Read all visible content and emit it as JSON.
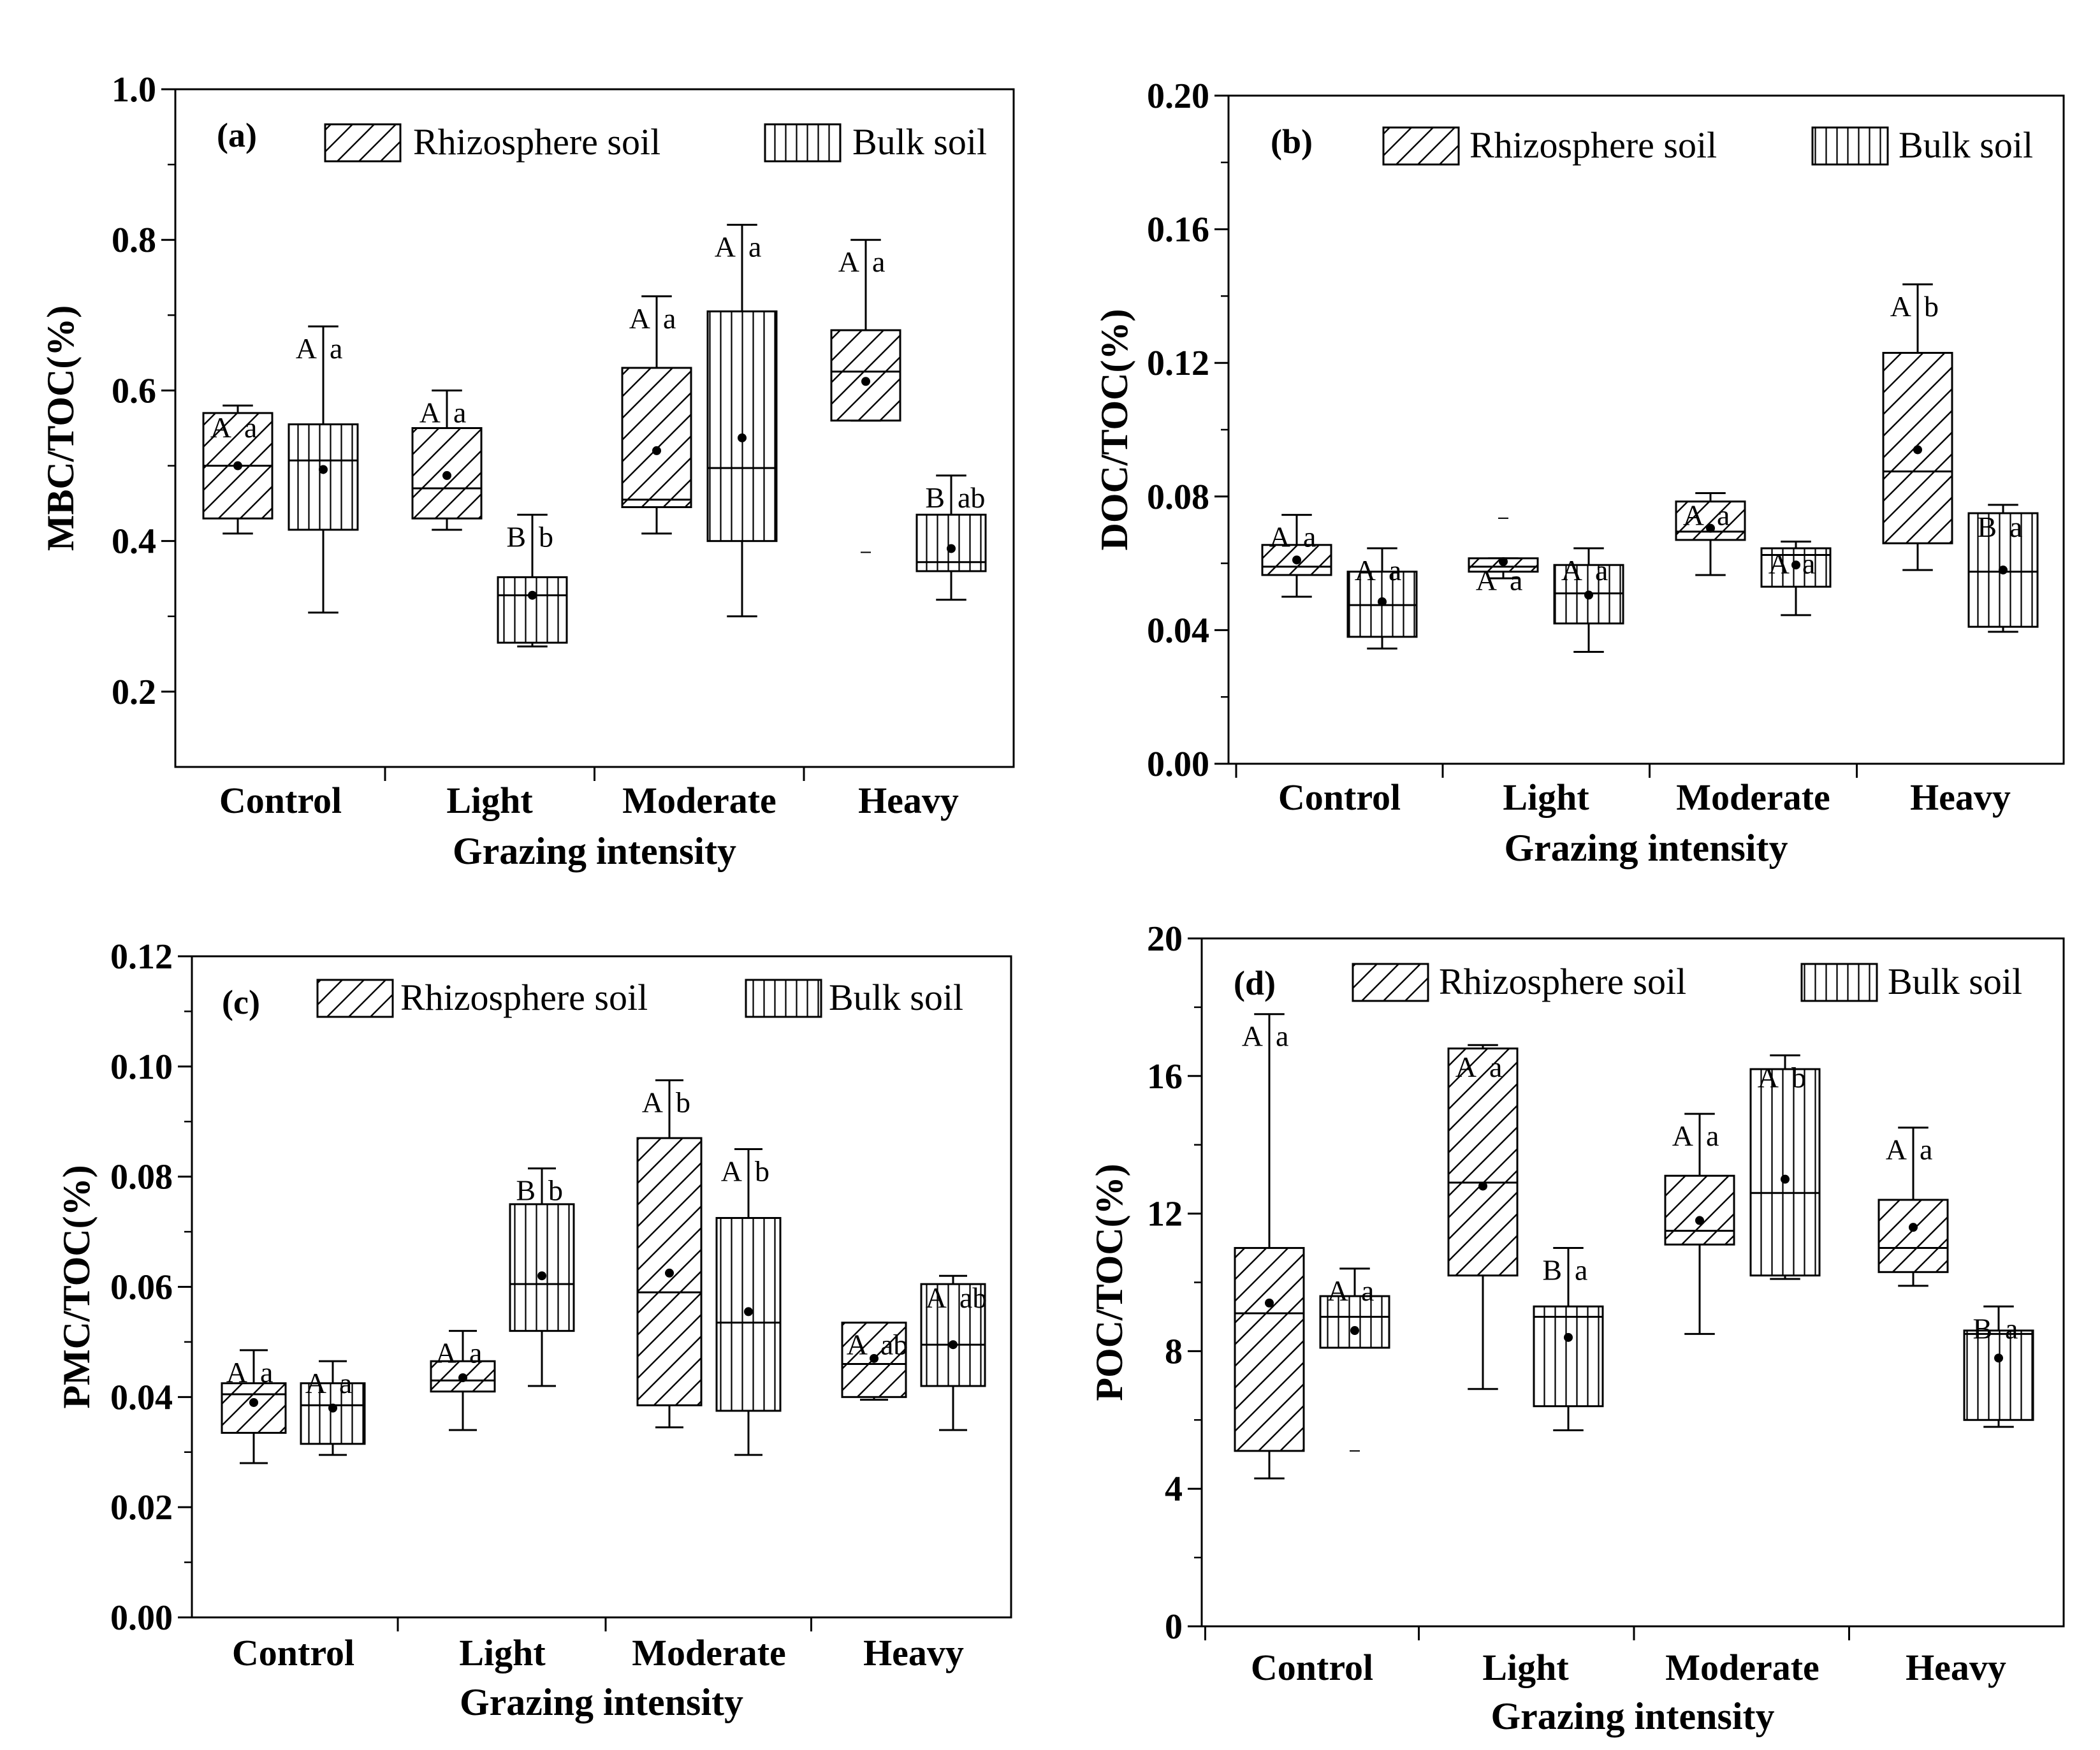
{
  "chart_data": [
    {
      "type": "box",
      "panel": "(a)",
      "ylabel": "MBC/TOC(%)",
      "xlabel": "Grazing intensity",
      "ylim": [
        0.1,
        1.0
      ],
      "yticks": [
        "0.2",
        "0.4",
        "0.6",
        "0.8",
        "1.0"
      ],
      "ytick_values": [
        0.2,
        0.4,
        0.6,
        0.8,
        1.0
      ],
      "categories": [
        "Control",
        "Light",
        "Moderate",
        "Heavy"
      ],
      "legend": [
        "Rhizosphere soil",
        "Bulk soil"
      ],
      "series": [
        {
          "name": "Rhizosphere soil",
          "pattern": "diag",
          "boxes": [
            {
              "whislo": 0.41,
              "q1": 0.43,
              "med": 0.5,
              "q3": 0.57,
              "whishi": 0.58,
              "mean": 0.5,
              "sig": [
                "A",
                "a"
              ]
            },
            {
              "whislo": 0.415,
              "q1": 0.43,
              "med": 0.47,
              "q3": 0.55,
              "whishi": 0.6,
              "mean": 0.487,
              "sig": [
                "A",
                "a"
              ]
            },
            {
              "whislo": 0.41,
              "q1": 0.445,
              "med": 0.455,
              "q3": 0.63,
              "whishi": 0.725,
              "mean": 0.52,
              "sig": [
                "A",
                "a"
              ]
            },
            {
              "whislo": 0.56,
              "q1": 0.56,
              "med": 0.625,
              "q3": 0.68,
              "whishi": 0.8,
              "mean": 0.612,
              "sig": [
                "A",
                "a"
              ],
              "outliers": [
                0.385
              ]
            }
          ]
        },
        {
          "name": "Bulk soil",
          "pattern": "vert",
          "boxes": [
            {
              "whislo": 0.305,
              "q1": 0.415,
              "med": 0.507,
              "q3": 0.555,
              "whishi": 0.685,
              "mean": 0.495,
              "sig": [
                "A",
                "a"
              ]
            },
            {
              "whislo": 0.26,
              "q1": 0.265,
              "med": 0.328,
              "q3": 0.352,
              "whishi": 0.435,
              "mean": 0.328,
              "sig": [
                "B",
                "b"
              ]
            },
            {
              "whislo": 0.3,
              "q1": 0.4,
              "med": 0.497,
              "q3": 0.705,
              "whishi": 0.82,
              "mean": 0.537,
              "sig": [
                "A",
                "a"
              ]
            },
            {
              "whislo": 0.322,
              "q1": 0.36,
              "med": 0.372,
              "q3": 0.435,
              "whishi": 0.487,
              "mean": 0.39,
              "sig": [
                "B",
                "ab"
              ]
            }
          ]
        }
      ]
    },
    {
      "type": "box",
      "panel": "(b)",
      "ylabel": "DOC/TOC(%)",
      "xlabel": "Grazing intensity",
      "ylim": [
        0.0,
        0.2
      ],
      "yticks": [
        "0.00",
        "0.04",
        "0.08",
        "0.12",
        "0.16",
        "0.20"
      ],
      "ytick_values": [
        0.0,
        0.04,
        0.08,
        0.12,
        0.16,
        0.2
      ],
      "categories": [
        "Control",
        "Light",
        "Moderate",
        "Heavy"
      ],
      "legend": [
        "Rhizosphere soil",
        "Bulk soil"
      ],
      "series": [
        {
          "name": "Rhizosphere soil",
          "pattern": "diag",
          "boxes": [
            {
              "whislo": 0.05,
              "q1": 0.0565,
              "med": 0.059,
              "q3": 0.0655,
              "whishi": 0.0745,
              "mean": 0.061,
              "sig": [
                "A",
                "a"
              ]
            },
            {
              "whislo": 0.0555,
              "q1": 0.0575,
              "med": 0.059,
              "q3": 0.0615,
              "whishi": 0.0615,
              "mean": 0.0605,
              "sig": [
                "A",
                "a"
              ],
              "outliers": [
                0.0735
              ]
            },
            {
              "whislo": 0.0565,
              "q1": 0.067,
              "med": 0.0695,
              "q3": 0.0785,
              "whishi": 0.081,
              "mean": 0.0705,
              "sig": [
                "A",
                "a"
              ]
            },
            {
              "whislo": 0.058,
              "q1": 0.066,
              "med": 0.0875,
              "q3": 0.123,
              "whishi": 0.1435,
              "mean": 0.094,
              "sig": [
                "A",
                "b"
              ]
            }
          ]
        },
        {
          "name": "Bulk soil",
          "pattern": "vert",
          "boxes": [
            {
              "whislo": 0.0345,
              "q1": 0.038,
              "med": 0.0475,
              "q3": 0.0575,
              "whishi": 0.0645,
              "mean": 0.0485,
              "sig": [
                "A",
                "a"
              ]
            },
            {
              "whislo": 0.0335,
              "q1": 0.042,
              "med": 0.051,
              "q3": 0.0595,
              "whishi": 0.0645,
              "mean": 0.0505,
              "sig": [
                "A",
                "a"
              ]
            },
            {
              "whislo": 0.0445,
              "q1": 0.053,
              "med": 0.0625,
              "q3": 0.0645,
              "whishi": 0.0665,
              "mean": 0.0595,
              "sig": [
                "A",
                "a"
              ]
            },
            {
              "whislo": 0.0395,
              "q1": 0.041,
              "med": 0.0575,
              "q3": 0.075,
              "whishi": 0.0775,
              "mean": 0.058,
              "sig": [
                "B",
                "a"
              ]
            }
          ]
        }
      ]
    },
    {
      "type": "box",
      "panel": "(c)",
      "ylabel": "PMC/TOC(%)",
      "xlabel": "Grazing intensity",
      "ylim": [
        0.0,
        0.12
      ],
      "yticks": [
        "0.00",
        "0.02",
        "0.04",
        "0.06",
        "0.08",
        "0.10",
        "0.12"
      ],
      "ytick_values": [
        0.0,
        0.02,
        0.04,
        0.06,
        0.08,
        0.1,
        0.12
      ],
      "categories": [
        "Control",
        "Light",
        "Moderate",
        "Heavy"
      ],
      "legend": [
        "Rhizosphere soil",
        "Bulk soil"
      ],
      "series": [
        {
          "name": "Rhizosphere soil",
          "pattern": "diag",
          "boxes": [
            {
              "whislo": 0.028,
              "q1": 0.0335,
              "med": 0.0405,
              "q3": 0.0425,
              "whishi": 0.0485,
              "mean": 0.039,
              "sig": [
                "A",
                "a"
              ]
            },
            {
              "whislo": 0.034,
              "q1": 0.041,
              "med": 0.043,
              "q3": 0.0465,
              "whishi": 0.052,
              "mean": 0.0435,
              "sig": [
                "A",
                "a"
              ]
            },
            {
              "whislo": 0.0345,
              "q1": 0.0385,
              "med": 0.059,
              "q3": 0.087,
              "whishi": 0.0975,
              "mean": 0.0625,
              "sig": [
                "A",
                "b"
              ]
            },
            {
              "whislo": 0.0395,
              "q1": 0.04,
              "med": 0.046,
              "q3": 0.0535,
              "whishi": 0.0535,
              "mean": 0.047,
              "sig": [
                "A",
                "ab"
              ]
            }
          ]
        },
        {
          "name": "Bulk soil",
          "pattern": "vert",
          "boxes": [
            {
              "whislo": 0.0295,
              "q1": 0.0315,
              "med": 0.0385,
              "q3": 0.0425,
              "whishi": 0.0465,
              "mean": 0.038,
              "sig": [
                "A",
                "a"
              ]
            },
            {
              "whislo": 0.042,
              "q1": 0.052,
              "med": 0.0605,
              "q3": 0.075,
              "whishi": 0.0815,
              "mean": 0.062,
              "sig": [
                "B",
                "b"
              ]
            },
            {
              "whislo": 0.0295,
              "q1": 0.0375,
              "med": 0.0535,
              "q3": 0.0725,
              "whishi": 0.085,
              "mean": 0.0555,
              "sig": [
                "A",
                "b"
              ]
            },
            {
              "whislo": 0.034,
              "q1": 0.042,
              "med": 0.0495,
              "q3": 0.0605,
              "whishi": 0.062,
              "mean": 0.0495,
              "sig": [
                "A",
                "ab"
              ]
            }
          ]
        }
      ]
    },
    {
      "type": "box",
      "panel": "(d)",
      "ylabel": "POC/TOC(%)",
      "xlabel": "Grazing intensity",
      "ylim": [
        0,
        20
      ],
      "yticks": [
        "0",
        "4",
        "8",
        "12",
        "16",
        "20"
      ],
      "ytick_values": [
        0,
        4,
        8,
        12,
        16,
        20
      ],
      "categories": [
        "Control",
        "Light",
        "Moderate",
        "Heavy"
      ],
      "legend": [
        "Rhizosphere soil",
        "Bulk soil"
      ],
      "series": [
        {
          "name": "Rhizosphere soil",
          "pattern": "diag",
          "boxes": [
            {
              "whislo": 4.3,
              "q1": 5.1,
              "med": 9.1,
              "q3": 11.0,
              "whishi": 17.8,
              "mean": 9.4,
              "sig": [
                "A",
                "a"
              ]
            },
            {
              "whislo": 6.9,
              "q1": 10.2,
              "med": 12.9,
              "q3": 16.8,
              "whishi": 16.9,
              "mean": 12.8,
              "sig": [
                "A",
                "a"
              ]
            },
            {
              "whislo": 8.5,
              "q1": 11.1,
              "med": 11.5,
              "q3": 13.1,
              "whishi": 14.9,
              "mean": 11.8,
              "sig": [
                "A",
                "a"
              ]
            },
            {
              "whislo": 9.9,
              "q1": 10.3,
              "med": 11.0,
              "q3": 12.4,
              "whishi": 14.5,
              "mean": 11.6,
              "sig": [
                "A",
                "a"
              ]
            }
          ]
        },
        {
          "name": "Bulk soil",
          "pattern": "vert",
          "boxes": [
            {
              "whislo": 8.1,
              "q1": 8.1,
              "med": 9.0,
              "q3": 9.6,
              "whishi": 10.4,
              "mean": 8.6,
              "sig": [
                "A",
                "a"
              ],
              "outliers": [
                5.1
              ]
            },
            {
              "whislo": 5.7,
              "q1": 6.4,
              "med": 9.0,
              "q3": 9.3,
              "whishi": 11.0,
              "mean": 8.4,
              "sig": [
                "B",
                "a"
              ]
            },
            {
              "whislo": 10.1,
              "q1": 10.2,
              "med": 12.6,
              "q3": 16.2,
              "whishi": 16.6,
              "mean": 13.0,
              "sig": [
                "A",
                "b"
              ]
            },
            {
              "whislo": 5.8,
              "q1": 6.0,
              "med": 8.5,
              "q3": 8.6,
              "whishi": 9.3,
              "mean": 7.8,
              "sig": [
                "B",
                "a"
              ]
            }
          ]
        }
      ]
    }
  ]
}
